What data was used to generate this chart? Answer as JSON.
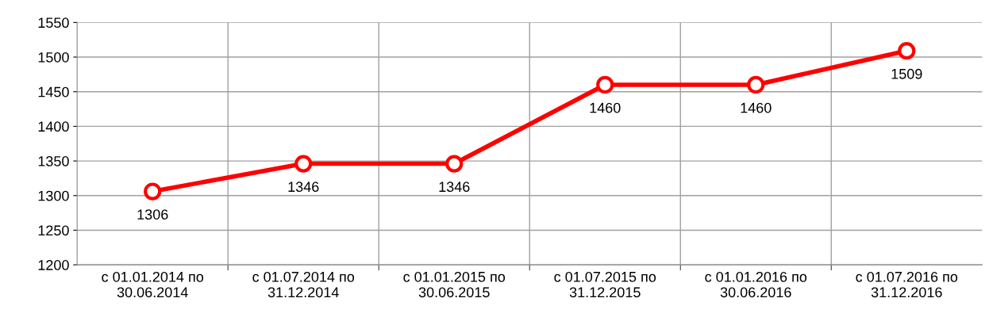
{
  "chart_data": {
    "type": "line",
    "categories": [
      "с 01.01.2014 по\n30.06.2014",
      "с 01.07.2014 по\n31.12.2014",
      "с 01.01.2015 по\n30.06.2015",
      "с 01.07.2015 по\n31.12.2015",
      "с 01.01.2016 по\n30.06.2016",
      "с 01.07.2016 по\n31.12.2016"
    ],
    "series": [
      {
        "color": "#ff0000",
        "values": [
          1306,
          1346,
          1346,
          1460,
          1460,
          1509
        ]
      }
    ],
    "ylim": [
      1200,
      1550
    ],
    "yticks": [
      1200,
      1250,
      1300,
      1350,
      1400,
      1450,
      1500,
      1550
    ],
    "grid": true,
    "marker": "circle",
    "line_style": "solid",
    "data_labels": true
  }
}
